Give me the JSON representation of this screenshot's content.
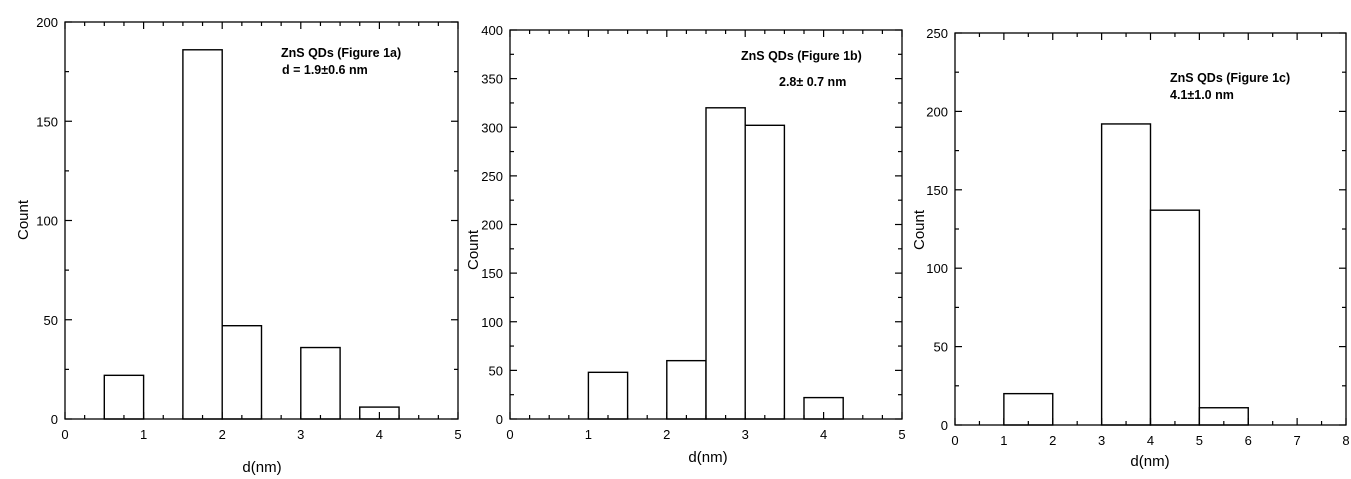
{
  "chart_data": [
    {
      "type": "bar",
      "xlabel": "d(nm)",
      "ylabel": "Count",
      "xlim": [
        0,
        5
      ],
      "ylim": [
        0,
        200
      ],
      "xticks": [
        "0",
        "1",
        "2",
        "3",
        "4",
        "5"
      ],
      "yticks": [
        "0",
        "50",
        "100",
        "150",
        "200"
      ],
      "annotations": [
        "ZnS QDs (Figure 1a)",
        "d = 1.9±0.6 nm"
      ],
      "bars": [
        {
          "x0": 0.5,
          "x1": 1.0,
          "value": 22
        },
        {
          "x0": 1.5,
          "x1": 2.0,
          "value": 186
        },
        {
          "x0": 2.0,
          "x1": 2.5,
          "value": 47
        },
        {
          "x0": 3.0,
          "x1": 3.5,
          "value": 36
        },
        {
          "x0": 3.75,
          "x1": 4.25,
          "value": 6
        }
      ]
    },
    {
      "type": "bar",
      "xlabel": "d(nm)",
      "ylabel": "Count",
      "xlim": [
        0,
        5
      ],
      "ylim": [
        0,
        400
      ],
      "xticks": [
        "0",
        "1",
        "2",
        "3",
        "4",
        "5"
      ],
      "yticks": [
        "0",
        "50",
        "100",
        "150",
        "200",
        "250",
        "300",
        "350",
        "400"
      ],
      "annotations": [
        "ZnS QDs (Figure 1b)",
        "2.8± 0.7 nm"
      ],
      "bars": [
        {
          "x0": 1.0,
          "x1": 1.5,
          "value": 48
        },
        {
          "x0": 2.0,
          "x1": 2.5,
          "value": 60
        },
        {
          "x0": 2.5,
          "x1": 3.0,
          "value": 320
        },
        {
          "x0": 3.0,
          "x1": 3.5,
          "value": 302
        },
        {
          "x0": 3.75,
          "x1": 4.25,
          "value": 22
        }
      ]
    },
    {
      "type": "bar",
      "xlabel": "d(nm)",
      "ylabel": "Count",
      "xlim": [
        0,
        8
      ],
      "ylim": [
        0,
        250
      ],
      "xticks": [
        "0",
        "1",
        "2",
        "3",
        "4",
        "5",
        "6",
        "7",
        "8"
      ],
      "yticks": [
        "0",
        "50",
        "100",
        "150",
        "200",
        "250"
      ],
      "annotations": [
        "ZnS QDs (Figure 1c)",
        "4.1±1.0 nm"
      ],
      "bars": [
        {
          "x0": 1.0,
          "x1": 2.0,
          "value": 20
        },
        {
          "x0": 3.0,
          "x1": 4.0,
          "value": 192
        },
        {
          "x0": 4.0,
          "x1": 5.0,
          "value": 137
        },
        {
          "x0": 5.0,
          "x1": 6.0,
          "value": 11
        }
      ]
    }
  ]
}
